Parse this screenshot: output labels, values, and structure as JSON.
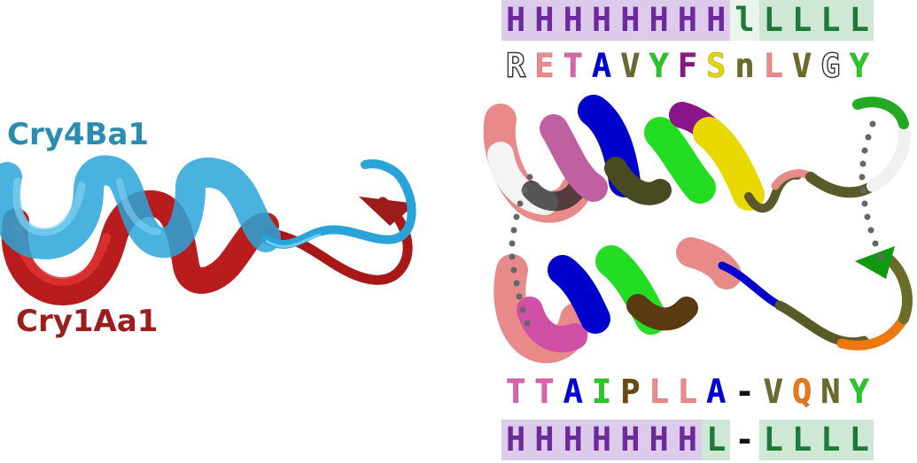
{
  "labels": {
    "top_protein": "Cry4Ba1",
    "bottom_protein": "Cry1Aa1"
  },
  "colors": {
    "cry4ba1": "#2a8cb0",
    "cry4ba1_ribbon": "#35b6e8",
    "cry1aa1": "#9b1d1d",
    "cry1aa1_ribbon": "#cc2222",
    "helix_bg": "#dccbea",
    "loop_bg": "#cfe8d6",
    "helix_text": "#6e2a9c",
    "loop_text": "#1f7a3a"
  },
  "top_secondary_structure": [
    {
      "char": "H",
      "type": "helix"
    },
    {
      "char": "H",
      "type": "helix"
    },
    {
      "char": "H",
      "type": "helix"
    },
    {
      "char": "H",
      "type": "helix"
    },
    {
      "char": "H",
      "type": "helix"
    },
    {
      "char": "H",
      "type": "helix"
    },
    {
      "char": "H",
      "type": "helix"
    },
    {
      "char": "H",
      "type": "helix"
    },
    {
      "char": "l",
      "type": "loop-light"
    },
    {
      "char": "L",
      "type": "loop"
    },
    {
      "char": "L",
      "type": "loop"
    },
    {
      "char": "L",
      "type": "loop"
    },
    {
      "char": "L",
      "type": "loop"
    }
  ],
  "top_sequence": [
    {
      "char": "R",
      "color": "#ffffff",
      "outline": true
    },
    {
      "char": "E",
      "color": "#f08a8a"
    },
    {
      "char": "T",
      "color": "#e060b0"
    },
    {
      "char": "A",
      "color": "#0000dd"
    },
    {
      "char": "V",
      "color": "#6b6b2a"
    },
    {
      "char": "Y",
      "color": "#22cc22"
    },
    {
      "char": "F",
      "color": "#8a168a"
    },
    {
      "char": "S",
      "color": "#e6d600"
    },
    {
      "char": "n",
      "color": "#6b6b2a"
    },
    {
      "char": "L",
      "color": "#f08a8a"
    },
    {
      "char": "V",
      "color": "#6b6b2a"
    },
    {
      "char": "G",
      "color": "#ffffff",
      "outline": true
    },
    {
      "char": "Y",
      "color": "#22cc22"
    }
  ],
  "bottom_sequence": [
    {
      "char": "T",
      "color": "#e060b0"
    },
    {
      "char": "T",
      "color": "#e060b0"
    },
    {
      "char": "A",
      "color": "#0000dd"
    },
    {
      "char": "I",
      "color": "#22cc22"
    },
    {
      "char": "P",
      "color": "#6b4a12"
    },
    {
      "char": "L",
      "color": "#f08a8a"
    },
    {
      "char": "L",
      "color": "#f08a8a"
    },
    {
      "char": "A",
      "color": "#0000dd"
    },
    {
      "char": "-",
      "color": "#111111"
    },
    {
      "char": "V",
      "color": "#6b6b2a"
    },
    {
      "char": "Q",
      "color": "#ee7711"
    },
    {
      "char": "N",
      "color": "#6b6b2a"
    },
    {
      "char": "Y",
      "color": "#22cc22"
    }
  ],
  "bottom_secondary_structure": [
    {
      "char": "H",
      "type": "helix"
    },
    {
      "char": "H",
      "type": "helix"
    },
    {
      "char": "H",
      "type": "helix"
    },
    {
      "char": "H",
      "type": "helix"
    },
    {
      "char": "H",
      "type": "helix"
    },
    {
      "char": "H",
      "type": "helix"
    },
    {
      "char": "H",
      "type": "helix"
    },
    {
      "char": "L",
      "type": "loop"
    },
    {
      "char": "-",
      "type": "gap"
    },
    {
      "char": "L",
      "type": "loop"
    },
    {
      "char": "L",
      "type": "loop"
    },
    {
      "char": "L",
      "type": "loop"
    },
    {
      "char": "L",
      "type": "loop"
    }
  ]
}
